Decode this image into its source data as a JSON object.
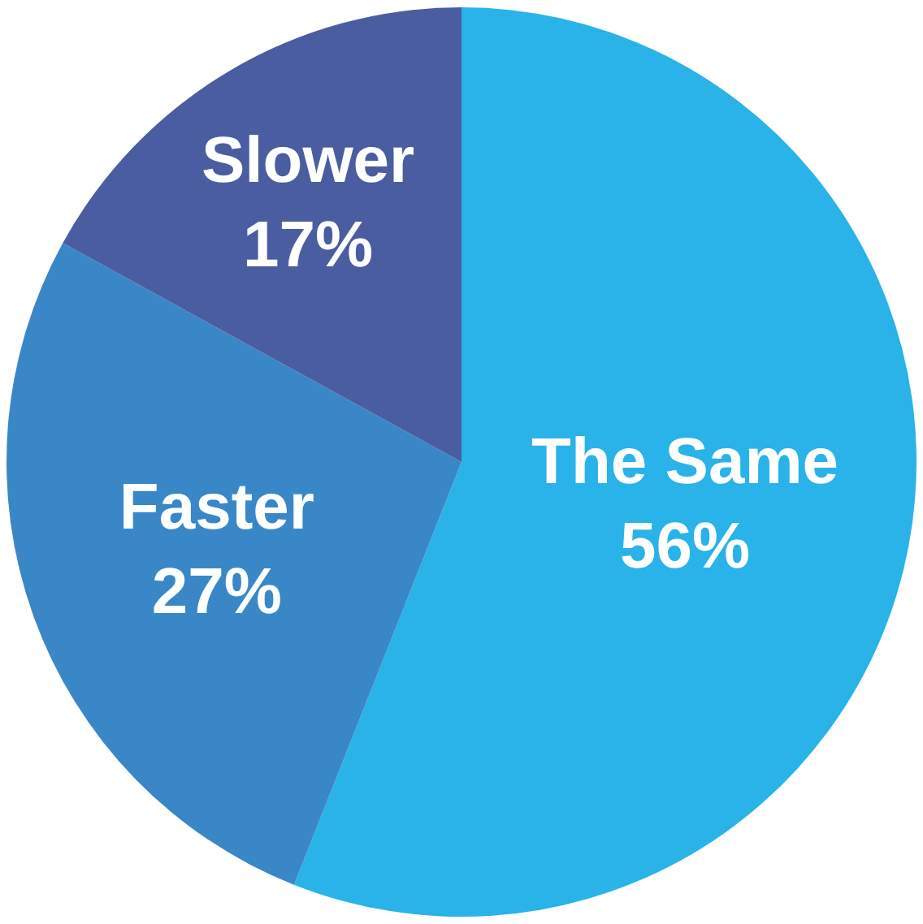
{
  "chart_data": {
    "type": "pie",
    "categories": [
      "The Same",
      "Faster",
      "Slower"
    ],
    "values": [
      56,
      27,
      17
    ],
    "value_labels": [
      "56%",
      "27%",
      "17%"
    ],
    "colors": [
      "#29b3e8",
      "#3a87c8",
      "#4a5da0"
    ],
    "legend": false
  }
}
